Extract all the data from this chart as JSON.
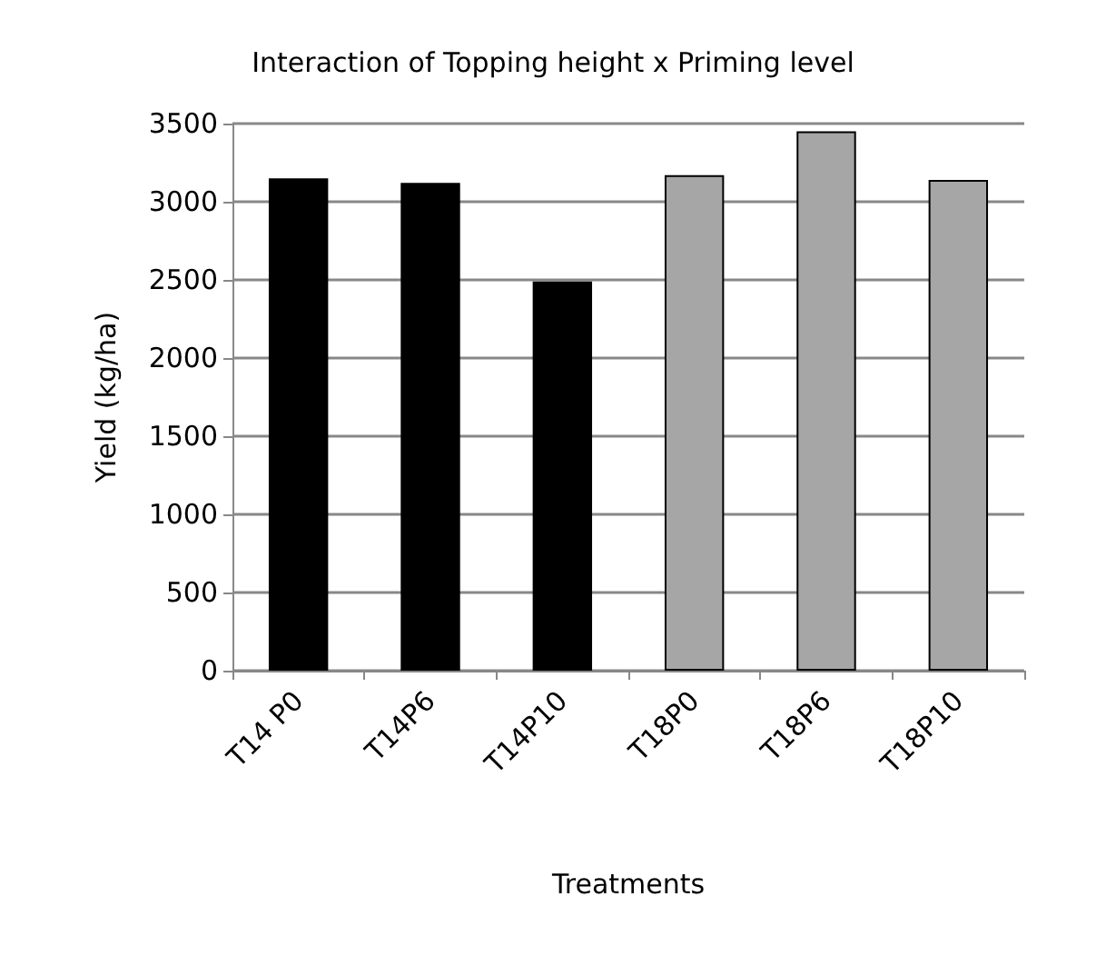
{
  "chart_data": {
    "type": "bar",
    "title": "Interaction of Topping height x Priming level",
    "xlabel": "Treatments",
    "ylabel": "Yield (kg/ha)",
    "categories": [
      "T14 P0",
      "T14P6",
      "T14P10",
      "T18P0",
      "T18P6",
      "T18P10"
    ],
    "values": [
      3150,
      3120,
      2490,
      3170,
      3450,
      3140
    ],
    "colors": [
      "#000000",
      "#000000",
      "#000000",
      "#a6a6a6",
      "#a6a6a6",
      "#a6a6a6"
    ],
    "ylim": [
      0,
      3500
    ],
    "yticks": [
      0,
      500,
      1000,
      1500,
      2000,
      2500,
      3000,
      3500
    ],
    "grid": "y"
  }
}
